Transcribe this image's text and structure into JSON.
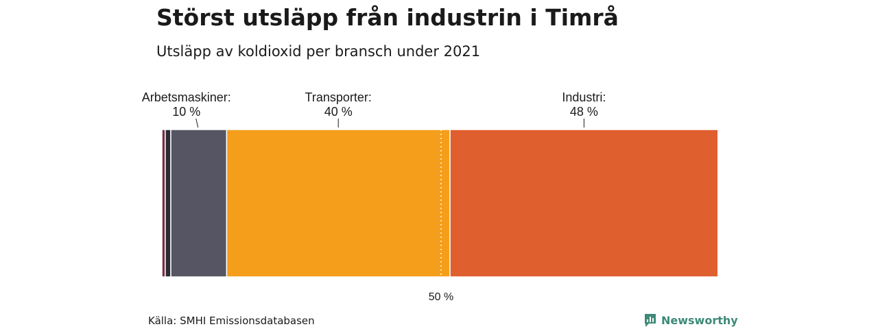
{
  "header": {
    "title": "Störst utsläpp från industrin i Timrå",
    "subtitle": "Utsläpp av koldioxid per bransch under 2021"
  },
  "footer": {
    "source": "Källa: SMHI Emissionsdatabasen",
    "logo_text": "Newsworthy",
    "logo_color": "#3d8a78"
  },
  "chart_data": {
    "type": "bar",
    "orientation": "horizontal-stacked",
    "xlim": [
      0,
      100
    ],
    "reference_line": {
      "value": 50,
      "label": "50 %"
    },
    "segments": [
      {
        "name": "",
        "value": 0.6,
        "color": "#7a2b4a"
      },
      {
        "name": "",
        "value": 1.0,
        "color": "#2b2b33"
      },
      {
        "name": "Arbetsmaskiner:",
        "value": 10,
        "label": "10 %",
        "color": "#565563"
      },
      {
        "name": "Transporter:",
        "value": 40,
        "label": "40 %",
        "color": "#f59e1b"
      },
      {
        "name": "Industri:",
        "value": 48,
        "label": "48 %",
        "color": "#e05f2e"
      }
    ]
  }
}
